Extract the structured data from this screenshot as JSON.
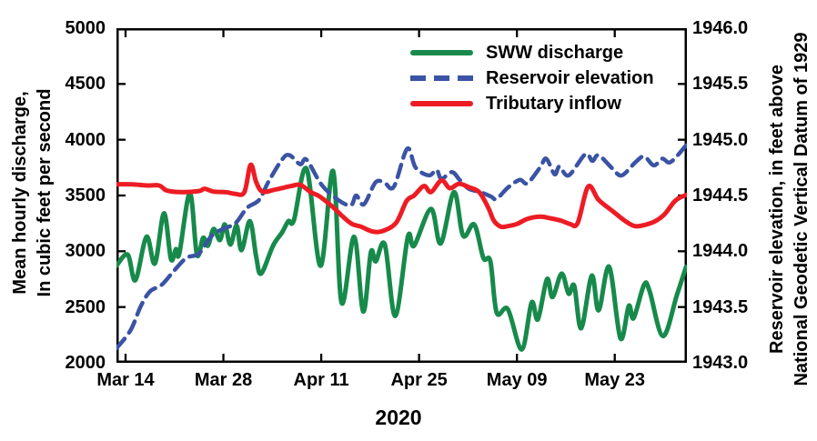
{
  "chart_data": {
    "type": "line",
    "title": "",
    "x_label_year": "2020",
    "x_unit": "days since Mar 14, 2020",
    "x_range": [
      -1.3,
      80.3
    ],
    "x_ticks": [
      {
        "day": 0,
        "label": "Mar 14"
      },
      {
        "day": 14,
        "label": "Mar 28"
      },
      {
        "day": 28,
        "label": "Apr 11"
      },
      {
        "day": 42,
        "label": "Apr 25"
      },
      {
        "day": 56,
        "label": "May 09"
      },
      {
        "day": 70,
        "label": "May 23"
      }
    ],
    "left_axis": {
      "title_line1": "Mean hourly discharge,",
      "title_line2": "In cubic feet per second",
      "range": [
        2000,
        5000
      ],
      "tick_labels": [
        "5000",
        "4500",
        "4000",
        "3500",
        "3000",
        "2500",
        "2000"
      ]
    },
    "right_axis": {
      "title_line1": "Reservoir elevation, in feet above",
      "title_line2": "National Geodetic Vertical Datum of 1929",
      "range": [
        1943.0,
        1946.0
      ],
      "tick_labels": [
        "1946.0",
        "1945.5",
        "1945.0",
        "1944.5",
        "1944.0",
        "1943.5",
        "1943.0"
      ]
    },
    "grid": false,
    "legend_position": "top-center-inside",
    "series": [
      {
        "name": "SWW discharge",
        "axis": "left",
        "unit": "cubic feet per second",
        "color": "#178a4b",
        "line_style": "solid",
        "points": [
          [
            -1.3,
            2870
          ],
          [
            0.3,
            2970
          ],
          [
            1.4,
            2740
          ],
          [
            3.0,
            3130
          ],
          [
            4.2,
            2890
          ],
          [
            5.5,
            3340
          ],
          [
            6.5,
            2930
          ],
          [
            7.2,
            3020
          ],
          [
            7.7,
            2980
          ],
          [
            9.2,
            3520
          ],
          [
            10.2,
            2970
          ],
          [
            11.1,
            3120
          ],
          [
            11.8,
            3050
          ],
          [
            12.6,
            3200
          ],
          [
            13.5,
            3100
          ],
          [
            14.2,
            3240
          ],
          [
            15.0,
            3060
          ],
          [
            15.9,
            3230
          ],
          [
            16.6,
            3010
          ],
          [
            17.8,
            3270
          ],
          [
            18.7,
            2950
          ],
          [
            19.4,
            2800
          ],
          [
            21.1,
            3050
          ],
          [
            22.4,
            3170
          ],
          [
            23.3,
            3270
          ],
          [
            24.1,
            3280
          ],
          [
            25.9,
            3740
          ],
          [
            27.9,
            2870
          ],
          [
            29.7,
            3720
          ],
          [
            30.9,
            2540
          ],
          [
            32.7,
            3130
          ],
          [
            34.0,
            2460
          ],
          [
            35.1,
            2990
          ],
          [
            35.8,
            2910
          ],
          [
            37.1,
            3060
          ],
          [
            38.6,
            2420
          ],
          [
            40.4,
            3130
          ],
          [
            41.3,
            3050
          ],
          [
            43.7,
            3380
          ],
          [
            45.1,
            3070
          ],
          [
            47.0,
            3530
          ],
          [
            48.3,
            3140
          ],
          [
            49.9,
            3240
          ],
          [
            51.2,
            2940
          ],
          [
            52.2,
            2910
          ],
          [
            53.1,
            2450
          ],
          [
            54.7,
            2480
          ],
          [
            56.7,
            2120
          ],
          [
            58.1,
            2540
          ],
          [
            59.0,
            2390
          ],
          [
            60.3,
            2750
          ],
          [
            61.1,
            2590
          ],
          [
            62.4,
            2800
          ],
          [
            63.4,
            2620
          ],
          [
            64.2,
            2690
          ],
          [
            65.2,
            2310
          ],
          [
            66.7,
            2780
          ],
          [
            67.7,
            2470
          ],
          [
            69.2,
            2860
          ],
          [
            70.8,
            2220
          ],
          [
            72.0,
            2510
          ],
          [
            72.7,
            2400
          ],
          [
            74.2,
            2700
          ],
          [
            75.0,
            2640
          ],
          [
            76.9,
            2240
          ],
          [
            78.9,
            2610
          ],
          [
            80.2,
            2860
          ]
        ]
      },
      {
        "name": "Reservoir elevation",
        "axis": "right",
        "unit": "feet above NGVD 1929",
        "color": "#3a53a4",
        "line_style": "dashed",
        "points": [
          [
            -1.3,
            1943.13
          ],
          [
            0.7,
            1943.29
          ],
          [
            2.2,
            1943.51
          ],
          [
            3.5,
            1943.64
          ],
          [
            5.2,
            1943.7
          ],
          [
            7.0,
            1943.83
          ],
          [
            8.7,
            1943.94
          ],
          [
            10.5,
            1943.98
          ],
          [
            12.2,
            1944.13
          ],
          [
            13.9,
            1944.2
          ],
          [
            15.7,
            1944.25
          ],
          [
            17.4,
            1944.39
          ],
          [
            19.1,
            1944.46
          ],
          [
            20.5,
            1944.63
          ],
          [
            22.5,
            1944.83
          ],
          [
            23.5,
            1944.86
          ],
          [
            25.0,
            1944.78
          ],
          [
            25.9,
            1944.82
          ],
          [
            28.0,
            1944.6
          ],
          [
            30.2,
            1944.47
          ],
          [
            32.2,
            1944.41
          ],
          [
            33.0,
            1944.5
          ],
          [
            34.1,
            1944.42
          ],
          [
            35.8,
            1944.62
          ],
          [
            37.1,
            1944.61
          ],
          [
            38.4,
            1944.58
          ],
          [
            40.3,
            1944.92
          ],
          [
            41.5,
            1944.75
          ],
          [
            43.4,
            1944.68
          ],
          [
            44.5,
            1944.73
          ],
          [
            45.2,
            1944.65
          ],
          [
            46.7,
            1944.71
          ],
          [
            47.8,
            1944.64
          ],
          [
            49.1,
            1944.56
          ],
          [
            50.8,
            1944.53
          ],
          [
            52.3,
            1944.49
          ],
          [
            53.1,
            1944.47
          ],
          [
            54.7,
            1944.57
          ],
          [
            56.4,
            1944.64
          ],
          [
            57.5,
            1944.61
          ],
          [
            59.3,
            1944.75
          ],
          [
            60.2,
            1944.83
          ],
          [
            61.4,
            1944.69
          ],
          [
            62.1,
            1944.76
          ],
          [
            63.4,
            1944.68
          ],
          [
            65.8,
            1944.87
          ],
          [
            66.8,
            1944.81
          ],
          [
            67.7,
            1944.86
          ],
          [
            69.7,
            1944.74
          ],
          [
            71.0,
            1944.68
          ],
          [
            73.0,
            1944.8
          ],
          [
            74.2,
            1944.85
          ],
          [
            75.6,
            1944.77
          ],
          [
            76.8,
            1944.83
          ],
          [
            78.0,
            1944.8
          ],
          [
            80.2,
            1944.95
          ]
        ]
      },
      {
        "name": "Tributary inflow",
        "axis": "left",
        "unit": "cubic feet per second",
        "color": "#ed1c24",
        "line_style": "solid",
        "points": [
          [
            -1.3,
            3600
          ],
          [
            1.0,
            3600
          ],
          [
            3.0,
            3590
          ],
          [
            4.8,
            3590
          ],
          [
            5.9,
            3545
          ],
          [
            7.9,
            3530
          ],
          [
            10.5,
            3540
          ],
          [
            11.3,
            3560
          ],
          [
            12.6,
            3535
          ],
          [
            14.4,
            3530
          ],
          [
            15.7,
            3515
          ],
          [
            17.0,
            3530
          ],
          [
            17.9,
            3775
          ],
          [
            18.7,
            3620
          ],
          [
            19.6,
            3535
          ],
          [
            21.5,
            3555
          ],
          [
            23.7,
            3585
          ],
          [
            25.0,
            3595
          ],
          [
            26.5,
            3530
          ],
          [
            27.8,
            3490
          ],
          [
            29.6,
            3400
          ],
          [
            31.1,
            3310
          ],
          [
            32.4,
            3245
          ],
          [
            33.7,
            3220
          ],
          [
            35.2,
            3180
          ],
          [
            36.7,
            3180
          ],
          [
            38.7,
            3255
          ],
          [
            40.2,
            3450
          ],
          [
            41.3,
            3500
          ],
          [
            42.7,
            3585
          ],
          [
            43.7,
            3530
          ],
          [
            45.2,
            3635
          ],
          [
            46.4,
            3565
          ],
          [
            47.7,
            3605
          ],
          [
            49.1,
            3575
          ],
          [
            50.6,
            3530
          ],
          [
            51.9,
            3390
          ],
          [
            52.7,
            3275
          ],
          [
            53.7,
            3220
          ],
          [
            54.7,
            3225
          ],
          [
            56.0,
            3245
          ],
          [
            57.5,
            3290
          ],
          [
            59.3,
            3310
          ],
          [
            60.8,
            3295
          ],
          [
            62.3,
            3275
          ],
          [
            63.6,
            3245
          ],
          [
            64.7,
            3255
          ],
          [
            66.2,
            3580
          ],
          [
            67.7,
            3460
          ],
          [
            69.7,
            3360
          ],
          [
            71.4,
            3275
          ],
          [
            72.9,
            3225
          ],
          [
            74.5,
            3240
          ],
          [
            75.8,
            3270
          ],
          [
            77.1,
            3330
          ],
          [
            78.7,
            3455
          ],
          [
            80.2,
            3505
          ]
        ]
      }
    ]
  }
}
